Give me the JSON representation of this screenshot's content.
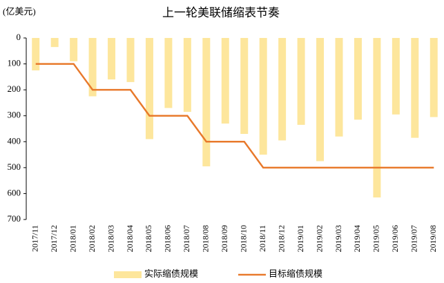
{
  "chart_data": {
    "type": "bar_line",
    "title": "上一轮美联储缩表节奏",
    "unit_label": "(亿美元)",
    "categories": [
      "2017/11",
      "2017/12",
      "2018/01",
      "2018/02",
      "2018/03",
      "2018/04",
      "2018/05",
      "2018/06",
      "2018/07",
      "2018/08",
      "2018/09",
      "2018/10",
      "2018/11",
      "2018/12",
      "2019/01",
      "2019/02",
      "2019/03",
      "2019/04",
      "2019/05",
      "2019/06",
      "2019/07",
      "2019/08"
    ],
    "series": [
      {
        "name": "实际缩债规模",
        "kind": "bar",
        "color": "#fde69c",
        "values": [
          125,
          35,
          90,
          225,
          160,
          170,
          390,
          270,
          285,
          495,
          330,
          370,
          450,
          395,
          335,
          475,
          380,
          315,
          615,
          295,
          385,
          305
        ]
      },
      {
        "name": "目标缩债规模",
        "kind": "line",
        "color": "#e8792b",
        "values": [
          100,
          100,
          100,
          200,
          200,
          200,
          300,
          300,
          300,
          400,
          400,
          400,
          500,
          500,
          500,
          500,
          500,
          500,
          500,
          500,
          500,
          500
        ]
      }
    ],
    "ylim": [
      0,
      700
    ],
    "y_inverted": true,
    "yticks": [
      0,
      100,
      200,
      300,
      400,
      500,
      600,
      700
    ],
    "legend": "bottom"
  }
}
